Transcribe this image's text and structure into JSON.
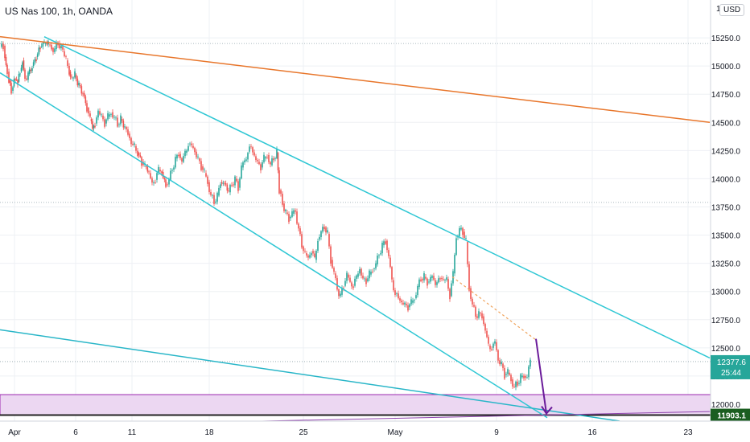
{
  "header": {
    "title": "US Nas 100, 1h, OANDA",
    "currency": "USD"
  },
  "colors": {
    "background": "#ffffff",
    "grid": "#eef0f4",
    "axis_text": "#131722",
    "bull_candle": "#26a69a",
    "bear_candle": "#ef5350",
    "channel_line": "#2fc7d4",
    "long_trend_line": "#e8762b",
    "projection_arrow": "#6a1b9a",
    "projection_dashed": "#f0a35c",
    "support_zone_fill": "#ecd7f2",
    "support_zone_border": "#9c27b0",
    "support_line": "#222222",
    "price_label_bg": "#26a69a",
    "level_label_bg": "#1b5e20",
    "lower_trend_line": "#29b6c8",
    "purple_trend_line": "#8e44ad"
  },
  "chart_data": {
    "type": "candlestick",
    "title": "US Nas 100, 1h, OANDA",
    "symbol": "US Nas 100",
    "interval": "1h",
    "source": "OANDA",
    "currency": "USD",
    "grid": true,
    "ylim": [
      11850,
      15550
    ],
    "y_ticks": [
      "15250.0",
      "15000.0",
      "14750.0",
      "14500.0",
      "14250.0",
      "14000.0",
      "13750.0",
      "13500.0",
      "13250.0",
      "13000.0",
      "12750.0",
      "12500.0",
      "12250.0",
      "12000.0"
    ],
    "x_ticks": [
      "Apr",
      "6",
      "11",
      "18",
      "25",
      "May",
      "9",
      "16",
      "23"
    ],
    "last_price": "12377.6",
    "countdown": "25:44",
    "level_label": "11903.1",
    "price_path": [
      [
        0,
        15170
      ],
      [
        4,
        15180
      ],
      [
        6,
        15080
      ],
      [
        9,
        14950
      ],
      [
        11,
        14870
      ],
      [
        14,
        14780
      ],
      [
        16,
        14820
      ],
      [
        19,
        14880
      ],
      [
        22,
        14860
      ],
      [
        25,
        14950
      ],
      [
        28,
        15050
      ],
      [
        31,
        14890
      ],
      [
        35,
        14930
      ],
      [
        40,
        15000
      ],
      [
        45,
        15080
      ],
      [
        50,
        15170
      ],
      [
        55,
        15200
      ],
      [
        60,
        15190
      ],
      [
        64,
        15160
      ],
      [
        68,
        15150
      ],
      [
        72,
        15200
      ],
      [
        78,
        15130
      ],
      [
        82,
        15050
      ],
      [
        86,
        14950
      ],
      [
        89,
        14890
      ],
      [
        93,
        14920
      ],
      [
        98,
        14830
      ],
      [
        103,
        14760
      ],
      [
        108,
        14630
      ],
      [
        112,
        14530
      ],
      [
        115,
        14450
      ],
      [
        118,
        14490
      ],
      [
        122,
        14600
      ],
      [
        126,
        14560
      ],
      [
        130,
        14490
      ],
      [
        134,
        14550
      ],
      [
        138,
        14590
      ],
      [
        142,
        14540
      ],
      [
        146,
        14480
      ],
      [
        150,
        14530
      ],
      [
        155,
        14460
      ],
      [
        159,
        14400
      ],
      [
        163,
        14310
      ],
      [
        167,
        14290
      ],
      [
        171,
        14230
      ],
      [
        176,
        14150
      ],
      [
        180,
        14110
      ],
      [
        185,
        14050
      ],
      [
        189,
        13960
      ],
      [
        193,
        13990
      ],
      [
        197,
        14080
      ],
      [
        201,
        14060
      ],
      [
        206,
        13950
      ],
      [
        210,
        13990
      ],
      [
        214,
        14080
      ],
      [
        218,
        14180
      ],
      [
        222,
        14220
      ],
      [
        226,
        14150
      ],
      [
        230,
        14230
      ],
      [
        234,
        14310
      ],
      [
        238,
        14290
      ],
      [
        242,
        14240
      ],
      [
        246,
        14180
      ],
      [
        250,
        14110
      ],
      [
        254,
        14050
      ],
      [
        258,
        13970
      ],
      [
        262,
        13850
      ],
      [
        266,
        13790
      ],
      [
        270,
        13850
      ],
      [
        274,
        13970
      ],
      [
        279,
        13960
      ],
      [
        284,
        13880
      ],
      [
        288,
        13950
      ],
      [
        292,
        14000
      ],
      [
        296,
        13920
      ],
      [
        300,
        14100
      ],
      [
        304,
        14160
      ],
      [
        308,
        14240
      ],
      [
        312,
        14280
      ],
      [
        316,
        14200
      ],
      [
        320,
        14150
      ],
      [
        324,
        14100
      ],
      [
        328,
        14180
      ],
      [
        332,
        14210
      ],
      [
        336,
        14120
      ],
      [
        340,
        14180
      ],
      [
        344,
        14230
      ],
      [
        347,
        13900
      ],
      [
        351,
        13780
      ],
      [
        355,
        13700
      ],
      [
        359,
        13650
      ],
      [
        363,
        13690
      ],
      [
        367,
        13710
      ],
      [
        371,
        13560
      ],
      [
        375,
        13400
      ],
      [
        379,
        13340
      ],
      [
        383,
        13300
      ],
      [
        387,
        13360
      ],
      [
        391,
        13280
      ],
      [
        395,
        13460
      ],
      [
        399,
        13530
      ],
      [
        403,
        13570
      ],
      [
        407,
        13510
      ],
      [
        411,
        13280
      ],
      [
        415,
        13160
      ],
      [
        419,
        13020
      ],
      [
        423,
        12970
      ],
      [
        427,
        13050
      ],
      [
        431,
        13150
      ],
      [
        435,
        13080
      ],
      [
        439,
        13050
      ],
      [
        443,
        13130
      ],
      [
        447,
        13200
      ],
      [
        451,
        13110
      ],
      [
        455,
        13090
      ],
      [
        459,
        13150
      ],
      [
        463,
        13200
      ],
      [
        467,
        13240
      ],
      [
        471,
        13330
      ],
      [
        475,
        13410
      ],
      [
        479,
        13450
      ],
      [
        483,
        13300
      ],
      [
        487,
        13100
      ],
      [
        491,
        12980
      ],
      [
        495,
        12940
      ],
      [
        499,
        12900
      ],
      [
        503,
        12890
      ],
      [
        507,
        12860
      ],
      [
        511,
        12900
      ],
      [
        515,
        12940
      ],
      [
        519,
        13040
      ],
      [
        523,
        13110
      ],
      [
        527,
        13130
      ],
      [
        531,
        13080
      ],
      [
        535,
        13120
      ],
      [
        539,
        13100
      ],
      [
        543,
        13080
      ],
      [
        547,
        13120
      ],
      [
        551,
        13100
      ],
      [
        555,
        13110
      ],
      [
        559,
        12960
      ],
      [
        563,
        13160
      ],
      [
        567,
        13480
      ],
      [
        571,
        13550
      ],
      [
        575,
        13530
      ],
      [
        579,
        13440
      ],
      [
        583,
        13030
      ],
      [
        587,
        12880
      ],
      [
        591,
        12780
      ],
      [
        595,
        12810
      ],
      [
        599,
        12780
      ],
      [
        603,
        12650
      ],
      [
        607,
        12520
      ],
      [
        611,
        12500
      ],
      [
        615,
        12550
      ],
      [
        619,
        12390
      ],
      [
        623,
        12360
      ],
      [
        627,
        12260
      ],
      [
        631,
        12280
      ],
      [
        635,
        12220
      ],
      [
        639,
        12150
      ],
      [
        643,
        12180
      ],
      [
        647,
        12240
      ],
      [
        651,
        12250
      ],
      [
        655,
        12240
      ],
      [
        659,
        12380
      ]
    ],
    "annotations": [
      {
        "type": "trend-line",
        "name": "channel-top",
        "points": [
          [
            "x",
            55,
            15260
          ],
          [
            "x",
            882,
            12410
          ]
        ]
      },
      {
        "type": "trend-line",
        "name": "channel-bottom",
        "points": [
          [
            "x",
            0,
            14940
          ],
          [
            "x",
            680,
            11880
          ]
        ]
      },
      {
        "type": "trend-line",
        "name": "long-term-resistance",
        "points": [
          [
            "x",
            0,
            15260
          ],
          [
            "x",
            882,
            14500
          ]
        ]
      },
      {
        "type": "trend-line",
        "name": "lower-support",
        "points": [
          [
            "x",
            0,
            12660
          ],
          [
            "x",
            770,
            11850
          ]
        ]
      },
      {
        "type": "trend-line",
        "name": "rising-support",
        "points": [
          [
            "x",
            326,
            11850
          ],
          [
            "x",
            882,
            11935
          ]
        ]
      },
      {
        "type": "horizontal-level",
        "name": "support-line",
        "value": 11903.1
      },
      {
        "type": "zone",
        "name": "support-zone",
        "from": 11903.1,
        "to": 12085
      },
      {
        "type": "projection",
        "name": "projected-drop",
        "from": [
          666,
          12580
        ],
        "to": [
          679,
          11903.1
        ]
      },
      {
        "type": "dashed-line",
        "name": "projection-guide",
        "from": [
          562,
          13130
        ],
        "to": [
          666,
          12570
        ]
      }
    ]
  }
}
